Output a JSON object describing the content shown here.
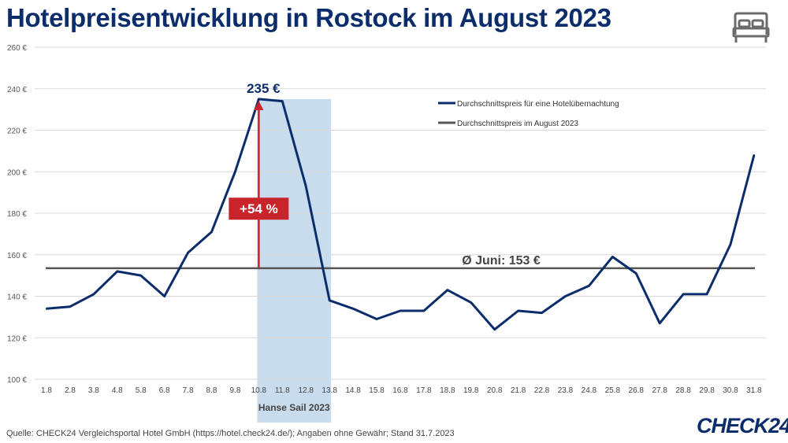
{
  "chart_data": {
    "type": "line",
    "title": "Hotelpreisentwicklung in Rostock im August 2023",
    "categories": [
      "1.8",
      "2.8",
      "3.8",
      "4.8",
      "5.8",
      "6.8",
      "7.8",
      "8.8",
      "9.8",
      "10.8",
      "11.8",
      "12.8",
      "13.8",
      "14.8",
      "15.8",
      "16.8",
      "17.8",
      "18.8",
      "19.8",
      "20.8",
      "21.8",
      "22.8",
      "23.8",
      "24.8",
      "25.8",
      "26.8",
      "27.8",
      "28.8",
      "29.8",
      "30.8",
      "31.8"
    ],
    "series": [
      {
        "name": "Durchschnittspreis für eine Hotelübernachtung",
        "color": "#0c2d6b",
        "values": [
          134,
          135,
          141,
          152,
          150,
          140,
          161,
          171,
          200,
          235,
          234,
          193,
          138,
          134,
          129,
          133,
          133,
          143,
          137,
          124,
          133,
          132,
          140,
          145,
          159,
          151,
          127,
          141,
          141,
          165,
          208
        ]
      },
      {
        "name": "Durchschnittspreis im August 2023",
        "color": "#555555",
        "constant": 153.5
      }
    ],
    "ylim": [
      100,
      260
    ],
    "yticks": [
      100,
      120,
      140,
      160,
      180,
      200,
      220,
      240,
      260
    ],
    "ytick_labels": [
      "100 €",
      "120 €",
      "140 €",
      "160 €",
      "180 €",
      "200 €",
      "220 €",
      "240 €",
      "260 €"
    ],
    "grid": true,
    "legend_position": "top-right",
    "highlight_band": {
      "from": "10.8",
      "to": "13.8",
      "label": "Hanse Sail 2023",
      "color": "#c8dced"
    },
    "annotations": {
      "peak_label": "235 €",
      "increase_label": "+54 %",
      "increase_color": "#c8242b",
      "arrow_from": 153.5,
      "arrow_to": 235,
      "arrow_at": "10.8",
      "average_label": "Ø Juni: 153 €"
    }
  },
  "source_note": "Quelle: CHECK24 Vergleichsportal Hotel GmbH (https://hotel.check24.de/); Angaben ohne Gewähr; Stand 31.7.2023",
  "brand": "CHECK24",
  "icons": {
    "header": "bed-icon"
  }
}
